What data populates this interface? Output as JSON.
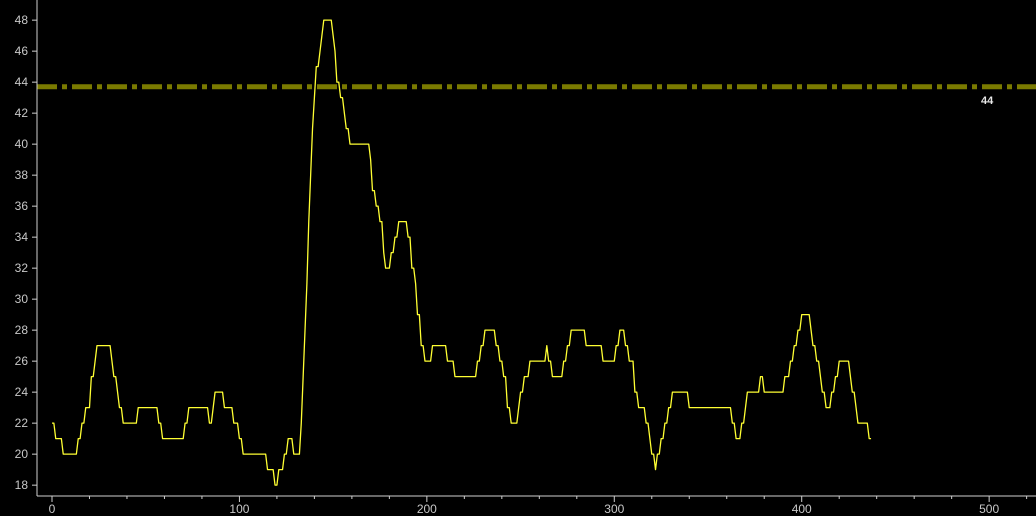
{
  "chart_data": {
    "type": "line",
    "title": "",
    "xlabel": "",
    "ylabel": "",
    "xlim": [
      -8,
      525
    ],
    "ylim": [
      17.3,
      49.3
    ],
    "x_ticks": [
      0,
      100,
      200,
      300,
      400,
      500
    ],
    "y_ticks": [
      18,
      20,
      22,
      24,
      26,
      28,
      30,
      32,
      34,
      36,
      38,
      40,
      42,
      44,
      46,
      48
    ],
    "grid": false,
    "background_color": "#000000",
    "series": [
      {
        "color": "#ffff33",
        "x_start": 0,
        "x_step": 1,
        "values_rle": [
          [
            22,
            2
          ],
          [
            21,
            4
          ],
          [
            20,
            8
          ],
          [
            21,
            2
          ],
          [
            22,
            2
          ],
          [
            23,
            3
          ],
          [
            25,
            2
          ],
          [
            26,
            1
          ],
          [
            27,
            8
          ],
          [
            26,
            1
          ],
          [
            25,
            2
          ],
          [
            24,
            1
          ],
          [
            23,
            2
          ],
          [
            22,
            8
          ],
          [
            23,
            11
          ],
          [
            22,
            2
          ],
          [
            21,
            12
          ],
          [
            22,
            2
          ],
          [
            23,
            11
          ],
          [
            22,
            2
          ],
          [
            23,
            1
          ],
          [
            24,
            5
          ],
          [
            23,
            5
          ],
          [
            22,
            3
          ],
          [
            21,
            2
          ],
          [
            20,
            13
          ],
          [
            19,
            4
          ],
          [
            18,
            2
          ],
          [
            19,
            3
          ],
          [
            20,
            2
          ],
          [
            21,
            3
          ],
          [
            20,
            4
          ],
          [
            22,
            1
          ],
          [
            25,
            1
          ],
          [
            28,
            1
          ],
          [
            31,
            1
          ],
          [
            35,
            1
          ],
          [
            38,
            1
          ],
          [
            41,
            1
          ],
          [
            43,
            1
          ],
          [
            45,
            2
          ],
          [
            46,
            1
          ],
          [
            47,
            1
          ],
          [
            48,
            5
          ],
          [
            47,
            1
          ],
          [
            46,
            1
          ],
          [
            44,
            2
          ],
          [
            43,
            2
          ],
          [
            42,
            1
          ],
          [
            41,
            2
          ],
          [
            40,
            11
          ],
          [
            39,
            1
          ],
          [
            37,
            2
          ],
          [
            36,
            2
          ],
          [
            35,
            2
          ],
          [
            33,
            1
          ],
          [
            32,
            3
          ],
          [
            33,
            2
          ],
          [
            34,
            2
          ],
          [
            35,
            5
          ],
          [
            34,
            2
          ],
          [
            32,
            2
          ],
          [
            31,
            1
          ],
          [
            29,
            2
          ],
          [
            27,
            2
          ],
          [
            26,
            4
          ],
          [
            27,
            8
          ],
          [
            26,
            4
          ],
          [
            25,
            12
          ],
          [
            26,
            2
          ],
          [
            27,
            2
          ],
          [
            28,
            6
          ],
          [
            27,
            2
          ],
          [
            26,
            2
          ],
          [
            25,
            2
          ],
          [
            23,
            2
          ],
          [
            22,
            4
          ],
          [
            23,
            1
          ],
          [
            24,
            2
          ],
          [
            25,
            3
          ],
          [
            26,
            9
          ],
          [
            27,
            1
          ],
          [
            26,
            2
          ],
          [
            25,
            6
          ],
          [
            26,
            2
          ],
          [
            27,
            2
          ],
          [
            28,
            8
          ],
          [
            27,
            9
          ],
          [
            26,
            7
          ],
          [
            27,
            2
          ],
          [
            28,
            3
          ],
          [
            27,
            2
          ],
          [
            26,
            3
          ],
          [
            24,
            2
          ],
          [
            23,
            4
          ],
          [
            22,
            2
          ],
          [
            21,
            1
          ],
          [
            20,
            2
          ],
          [
            19,
            1
          ],
          [
            20,
            2
          ],
          [
            21,
            2
          ],
          [
            22,
            2
          ],
          [
            23,
            2
          ],
          [
            24,
            9
          ],
          [
            23,
            23
          ],
          [
            22,
            2
          ],
          [
            21,
            3
          ],
          [
            22,
            2
          ],
          [
            23,
            1
          ],
          [
            24,
            7
          ],
          [
            25,
            2
          ],
          [
            24,
            11
          ],
          [
            25,
            3
          ],
          [
            26,
            2
          ],
          [
            27,
            2
          ],
          [
            28,
            2
          ],
          [
            29,
            5
          ],
          [
            28,
            1
          ],
          [
            27,
            2
          ],
          [
            26,
            2
          ],
          [
            25,
            1
          ],
          [
            24,
            2
          ],
          [
            23,
            3
          ],
          [
            24,
            2
          ],
          [
            25,
            2
          ],
          [
            26,
            6
          ],
          [
            25,
            1
          ],
          [
            24,
            2
          ],
          [
            23,
            1
          ],
          [
            22,
            6
          ],
          [
            21,
            2
          ]
        ]
      }
    ],
    "reference_line": {
      "y": 43.7,
      "label": "44",
      "color": "#7a7a00",
      "style": "dash-dot"
    }
  }
}
